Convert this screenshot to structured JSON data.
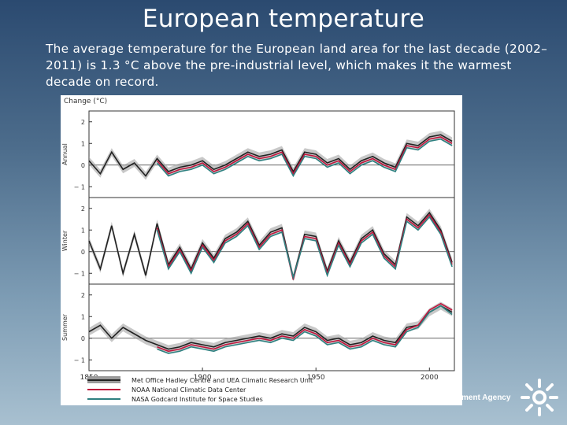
{
  "slide": {
    "title": "European temperature",
    "body": "The average temperature for the European land area for the last decade (2002–2011) is 1.3 °C above the pre-industrial level, which makes it the warmest decade on record."
  },
  "footer": {
    "agency_text": "ment Agency",
    "logo_icon": "sun-leaf-logo-icon"
  },
  "chart_data": {
    "type": "line",
    "ylabel": "Change (°C)",
    "xlim": [
      1850,
      2011
    ],
    "x_ticks": [
      1850,
      1900,
      1950,
      2000
    ],
    "x_tick_labels": [
      "1850",
      "1900",
      "1950",
      "2000"
    ],
    "grid": false,
    "legend_position": "bottom",
    "colors": {
      "hadley": "#222222",
      "hadley_band": "#9a9a9a",
      "noaa": "#c0143c",
      "nasa": "#2e8080"
    },
    "legend": [
      "Met Office Hadley Centre and UEA Climatic Research Unit",
      "NOAA National Climatic Data Center",
      "NASA Godcard Institute for Space Studies"
    ],
    "panels": [
      {
        "name": "Annual",
        "ylim": [
          -1.5,
          2.5
        ],
        "y_ticks": [
          -1,
          0,
          1,
          2
        ],
        "y_tick_labels": [
          "− 1",
          "0",
          "1",
          "2"
        ],
        "zero_line": 0,
        "x": [
          1850,
          1855,
          1860,
          1865,
          1870,
          1875,
          1880,
          1885,
          1890,
          1895,
          1900,
          1905,
          1910,
          1915,
          1920,
          1925,
          1930,
          1935,
          1940,
          1945,
          1950,
          1955,
          1960,
          1965,
          1970,
          1975,
          1980,
          1985,
          1990,
          1995,
          2000,
          2005,
          2010
        ],
        "series": [
          {
            "key": "hadley",
            "values": [
              0.2,
              -0.4,
              0.6,
              -0.2,
              0.1,
              -0.5,
              0.3,
              -0.3,
              -0.1,
              0.0,
              0.2,
              -0.2,
              0.0,
              0.3,
              0.6,
              0.4,
              0.5,
              0.7,
              -0.3,
              0.6,
              0.5,
              0.1,
              0.3,
              -0.2,
              0.2,
              0.4,
              0.1,
              -0.1,
              1.0,
              0.9,
              1.3,
              1.4,
              1.1
            ]
          },
          {
            "key": "noaa",
            "start": 1880,
            "values": [
              0.2,
              -0.4,
              -0.2,
              -0.1,
              0.1,
              -0.3,
              -0.1,
              0.2,
              0.5,
              0.3,
              0.4,
              0.6,
              -0.4,
              0.5,
              0.4,
              0.0,
              0.2,
              -0.3,
              0.1,
              0.3,
              0.0,
              -0.2,
              0.9,
              0.8,
              1.2,
              1.3,
              1.0
            ]
          },
          {
            "key": "nasa",
            "start": 1880,
            "values": [
              0.1,
              -0.5,
              -0.3,
              -0.2,
              0.0,
              -0.4,
              -0.2,
              0.1,
              0.4,
              0.2,
              0.3,
              0.5,
              -0.5,
              0.4,
              0.3,
              -0.1,
              0.1,
              -0.4,
              0.0,
              0.2,
              -0.1,
              -0.3,
              0.8,
              0.7,
              1.1,
              1.2,
              0.9
            ]
          }
        ]
      },
      {
        "name": "Winter",
        "ylim": [
          -1.5,
          2.5
        ],
        "y_ticks": [
          -1,
          0,
          1,
          2
        ],
        "y_tick_labels": [
          "− 1",
          "0",
          "1",
          "2"
        ],
        "zero_line": 0,
        "x": [
          1850,
          1855,
          1860,
          1865,
          1870,
          1875,
          1880,
          1885,
          1890,
          1895,
          1900,
          1905,
          1910,
          1915,
          1920,
          1925,
          1930,
          1935,
          1940,
          1945,
          1950,
          1955,
          1960,
          1965,
          1970,
          1975,
          1980,
          1985,
          1990,
          1995,
          2000,
          2005,
          2010
        ],
        "series": [
          {
            "key": "hadley",
            "values": [
              0.5,
              -0.8,
              1.2,
              -1.0,
              0.8,
              -1.1,
              1.3,
              -0.6,
              0.2,
              -0.8,
              0.4,
              -0.3,
              0.6,
              0.9,
              1.4,
              0.3,
              0.9,
              1.1,
              -1.2,
              0.8,
              0.7,
              -0.9,
              0.5,
              -0.5,
              0.6,
              1.0,
              -0.1,
              -0.6,
              1.6,
              1.2,
              1.8,
              1.0,
              -0.5
            ]
          },
          {
            "key": "noaa",
            "start": 1880,
            "values": [
              1.1,
              -0.7,
              0.1,
              -0.9,
              0.3,
              -0.4,
              0.5,
              0.8,
              1.3,
              0.2,
              0.8,
              1.0,
              -1.3,
              0.7,
              0.6,
              -1.0,
              0.4,
              -0.6,
              0.5,
              0.9,
              -0.2,
              -0.7,
              1.5,
              1.1,
              1.7,
              0.9,
              -0.6
            ]
          },
          {
            "key": "nasa",
            "start": 1880,
            "values": [
              1.0,
              -0.8,
              0.0,
              -1.0,
              0.2,
              -0.5,
              0.4,
              0.7,
              1.2,
              0.1,
              0.7,
              0.9,
              -1.2,
              0.6,
              0.5,
              -1.1,
              0.3,
              -0.7,
              0.4,
              0.8,
              -0.3,
              -0.8,
              1.4,
              1.0,
              1.6,
              0.8,
              -0.7
            ]
          }
        ]
      },
      {
        "name": "Summer",
        "ylim": [
          -1.5,
          2.5
        ],
        "y_ticks": [
          -1,
          0,
          1,
          2
        ],
        "y_tick_labels": [
          "− 1",
          "0",
          "1",
          "2"
        ],
        "zero_line": 0,
        "x": [
          1850,
          1855,
          1860,
          1865,
          1870,
          1875,
          1880,
          1885,
          1890,
          1895,
          1900,
          1905,
          1910,
          1915,
          1920,
          1925,
          1930,
          1935,
          1940,
          1945,
          1950,
          1955,
          1960,
          1965,
          1970,
          1975,
          1980,
          1985,
          1990,
          1995,
          2000,
          2005,
          2010
        ],
        "series": [
          {
            "key": "hadley",
            "values": [
              0.3,
              0.6,
              0.0,
              0.5,
              0.2,
              -0.1,
              -0.3,
              -0.5,
              -0.4,
              -0.2,
              -0.3,
              -0.4,
              -0.2,
              -0.1,
              0.0,
              0.1,
              0.0,
              0.2,
              0.1,
              0.5,
              0.3,
              -0.1,
              0.0,
              -0.3,
              -0.2,
              0.1,
              -0.1,
              -0.2,
              0.5,
              0.6,
              1.2,
              1.5,
              1.2
            ]
          },
          {
            "key": "noaa",
            "start": 1880,
            "values": [
              -0.4,
              -0.6,
              -0.5,
              -0.3,
              -0.4,
              -0.5,
              -0.3,
              -0.2,
              -0.1,
              0.0,
              -0.1,
              0.1,
              0.0,
              0.4,
              0.2,
              -0.2,
              -0.1,
              -0.4,
              -0.3,
              0.0,
              -0.2,
              -0.3,
              0.4,
              0.6,
              1.3,
              1.6,
              1.3
            ]
          },
          {
            "key": "nasa",
            "start": 1880,
            "values": [
              -0.5,
              -0.7,
              -0.6,
              -0.4,
              -0.5,
              -0.6,
              -0.4,
              -0.3,
              -0.2,
              -0.1,
              -0.2,
              0.0,
              -0.1,
              0.3,
              0.1,
              -0.3,
              -0.2,
              -0.5,
              -0.4,
              -0.1,
              -0.3,
              -0.4,
              0.3,
              0.5,
              1.2,
              1.5,
              1.1
            ]
          }
        ]
      }
    ]
  }
}
